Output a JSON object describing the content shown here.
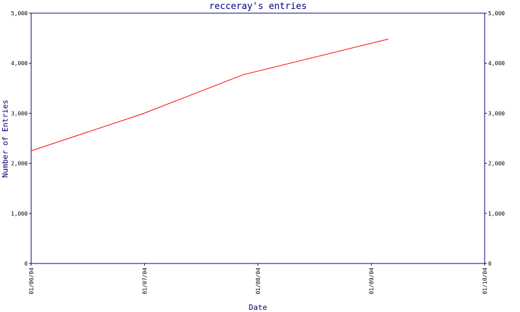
{
  "chart_data": {
    "type": "line",
    "title": "recceray's entries",
    "xlabel": "Date",
    "ylabel": "Number of Entries",
    "x_ticks": [
      "01/06/04",
      "01/07/04",
      "01/08/04",
      "01/09/04",
      "01/10/04"
    ],
    "y_ticks": [
      "0",
      "1,000",
      "2,000",
      "3,000",
      "4,000",
      "5,000"
    ],
    "ylim": [
      0,
      5000
    ],
    "xlim": [
      "2004-06-01",
      "2004-10-01"
    ],
    "grid": false,
    "legend": "none",
    "series": [
      {
        "color": "#ff0000",
        "points": [
          {
            "x": "2004-06-01",
            "y": 2250
          },
          {
            "x": "2004-07-01",
            "y": 2990
          },
          {
            "x": "2004-07-28",
            "y": 3770
          },
          {
            "x": "2004-09-05",
            "y": 4480
          }
        ]
      }
    ],
    "colors": {
      "axis": "#000080",
      "line": "#ff0000",
      "background": "#ffffff"
    }
  }
}
